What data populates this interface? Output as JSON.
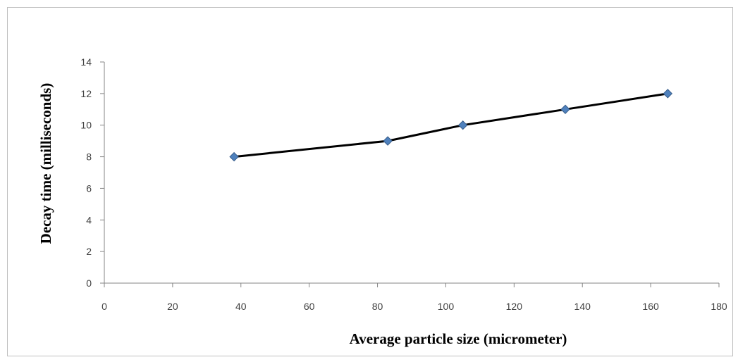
{
  "chart_data": {
    "type": "line",
    "title": "",
    "xlabel": "Average particle size (micrometer)",
    "ylabel": "Decay time (milliseconds)",
    "xlim": [
      0,
      180
    ],
    "ylim": [
      0,
      14
    ],
    "x_ticks": [
      0,
      20,
      40,
      60,
      80,
      100,
      120,
      140,
      160,
      180
    ],
    "y_ticks": [
      0,
      2,
      4,
      6,
      8,
      10,
      12,
      14
    ],
    "grid": false,
    "legend": "none",
    "series": [
      {
        "x": [
          38,
          83,
          105,
          135,
          165
        ],
        "y": [
          8,
          9,
          10,
          11,
          12
        ],
        "line_color": "#000000",
        "marker": "diamond",
        "marker_color": "#4f81bd"
      }
    ]
  }
}
